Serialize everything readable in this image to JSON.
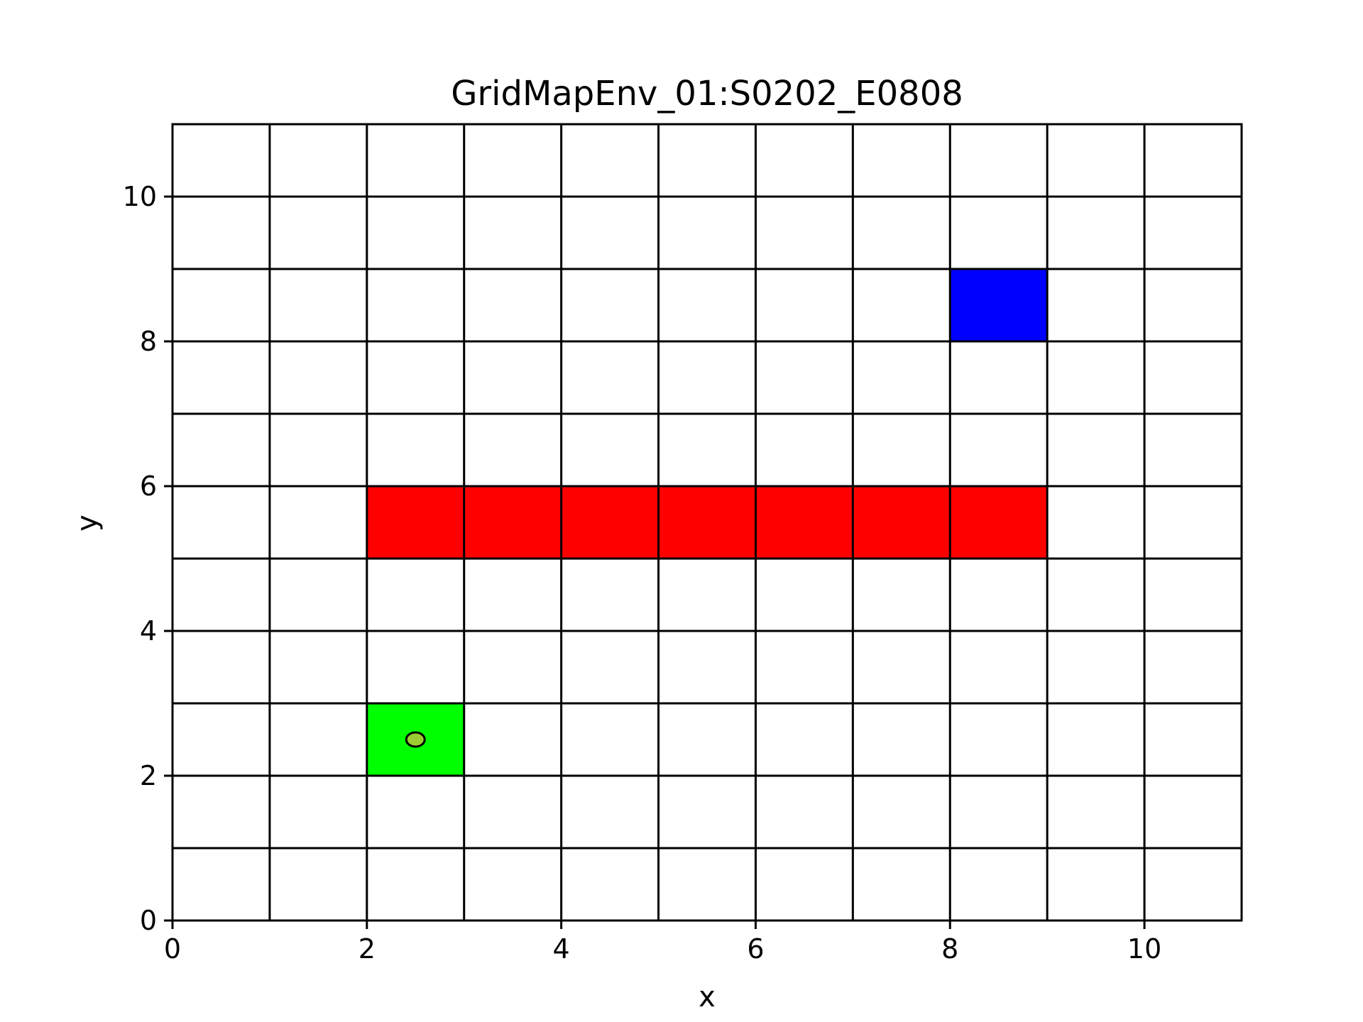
{
  "chart_data": {
    "type": "heatmap",
    "title": "GridMapEnv_01:S0202_E0808",
    "xlabel": "x",
    "ylabel": "y",
    "xlim": [
      0,
      11
    ],
    "ylim": [
      0,
      11
    ],
    "xticks": [
      "0",
      "2",
      "4",
      "6",
      "8",
      "10"
    ],
    "yticks": [
      "0",
      "2",
      "4",
      "6",
      "8",
      "10"
    ],
    "grid": true,
    "cells": [
      {
        "x": 2,
        "y": 2,
        "type": "start",
        "color": "#00ff00"
      },
      {
        "x": 8,
        "y": 8,
        "type": "end",
        "color": "#0000ff"
      },
      {
        "x": 2,
        "y": 5,
        "type": "obstacle",
        "color": "#ff0000"
      },
      {
        "x": 3,
        "y": 5,
        "type": "obstacle",
        "color": "#ff0000"
      },
      {
        "x": 4,
        "y": 5,
        "type": "obstacle",
        "color": "#ff0000"
      },
      {
        "x": 5,
        "y": 5,
        "type": "obstacle",
        "color": "#ff0000"
      },
      {
        "x": 6,
        "y": 5,
        "type": "obstacle",
        "color": "#ff0000"
      },
      {
        "x": 7,
        "y": 5,
        "type": "obstacle",
        "color": "#ff0000"
      },
      {
        "x": 8,
        "y": 5,
        "type": "obstacle",
        "color": "#ff0000"
      }
    ],
    "agent": {
      "x": 2.5,
      "y": 2.5,
      "fill": "#9acd32",
      "stroke": "#000000"
    }
  }
}
